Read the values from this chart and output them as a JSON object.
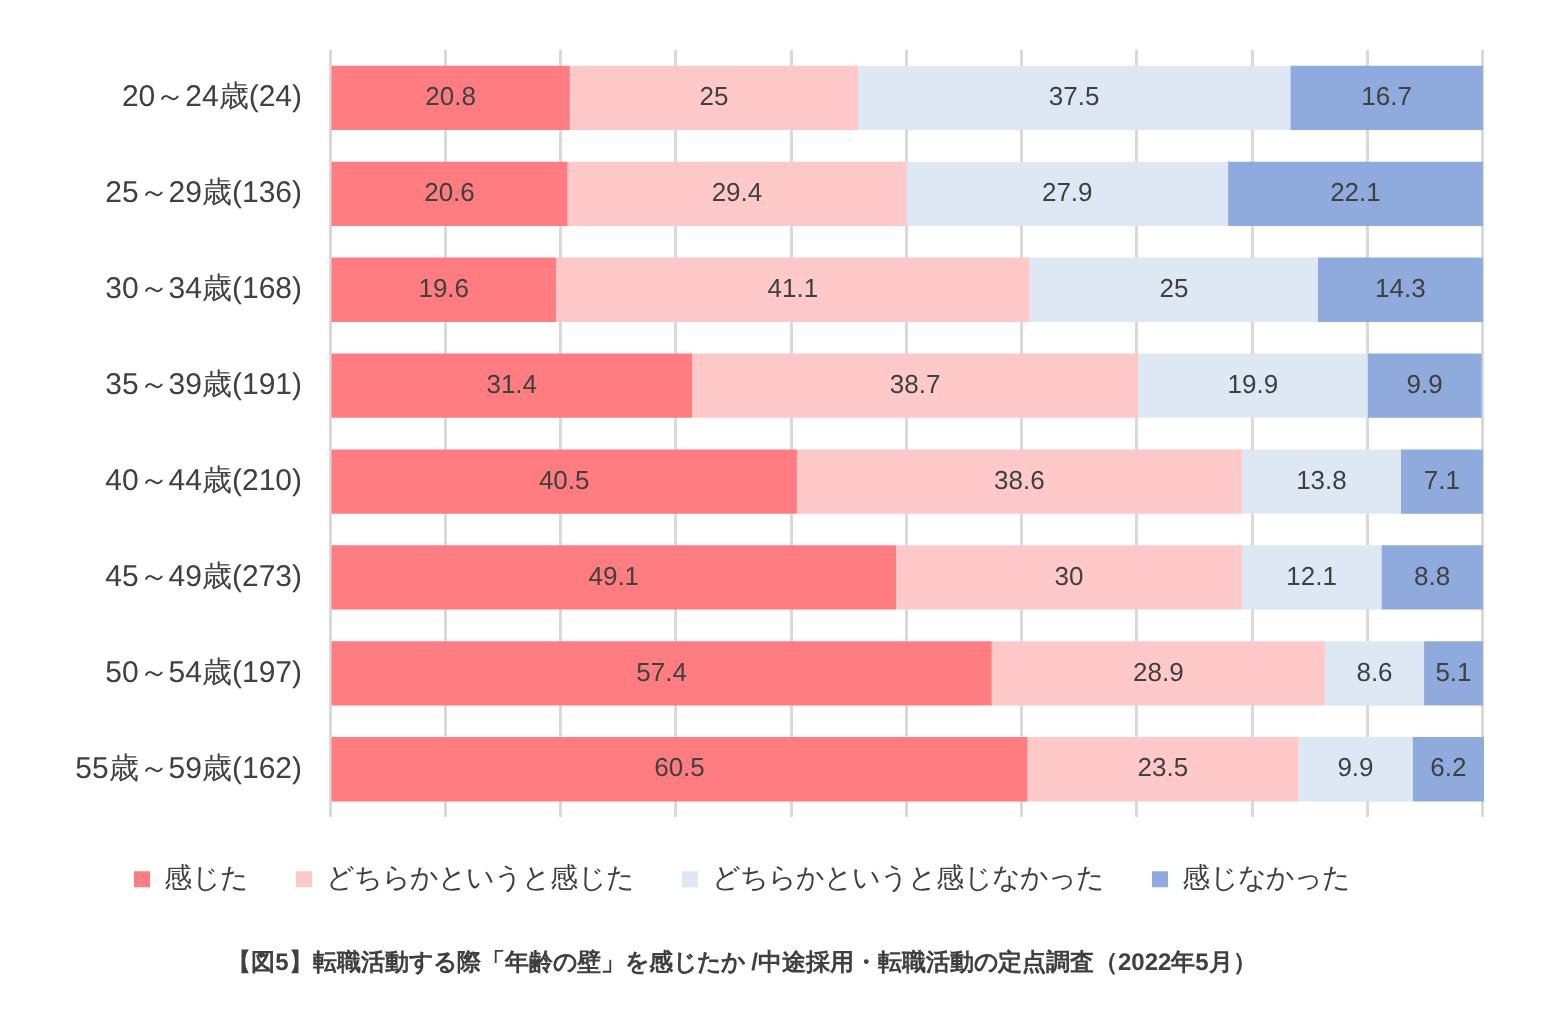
{
  "chart_data": {
    "type": "bar",
    "orientation": "horizontal",
    "stacked": true,
    "title": "【図5】転職活動する際「年齢の壁」を感じたか /中途採用・転職活動の定点調査（2022年5月）",
    "categories": [
      "20～24歳(24)",
      "25～29歳(136)",
      "30～34歳(168)",
      "35～39歳(191)",
      "40～44歳(210)",
      "45～49歳(273)",
      "50～54歳(197)",
      "55歳～59歳(162)"
    ],
    "series": [
      {
        "name": "感じた",
        "color": "#ff7c80",
        "values": [
          20.8,
          20.6,
          19.6,
          31.4,
          40.5,
          49.1,
          57.4,
          60.5
        ]
      },
      {
        "name": "どちらかというと感じた",
        "color": "#ffc9c9",
        "values": [
          25,
          29.4,
          41.1,
          38.7,
          38.6,
          30,
          28.9,
          23.5
        ]
      },
      {
        "name": "どちらかというと感じなかった",
        "color": "#dee8f5",
        "values": [
          37.5,
          27.9,
          25,
          19.9,
          13.8,
          12.1,
          8.6,
          9.9
        ]
      },
      {
        "name": "感じなかった",
        "color": "#8faadc",
        "values": [
          16.7,
          22.1,
          14.3,
          9.9,
          7.1,
          8.8,
          5.1,
          6.2
        ]
      }
    ],
    "xlim": [
      0,
      100.1
    ],
    "xticks": [
      {
        "value": 0,
        "label": null
      },
      {
        "value": 10,
        "label": null
      },
      {
        "value": 20,
        "label": null
      },
      {
        "value": 30,
        "label": null
      },
      {
        "value": 40,
        "label": null
      },
      {
        "value": 50,
        "label": null
      },
      {
        "value": 60,
        "label": null
      },
      {
        "value": 70,
        "label": null
      },
      {
        "value": 80,
        "label": null
      },
      {
        "value": 90,
        "label": null
      },
      {
        "value": 100,
        "label": null
      }
    ],
    "grid": "x",
    "legend": "bottom",
    "tick_labels": "y",
    "data_labels": true
  }
}
